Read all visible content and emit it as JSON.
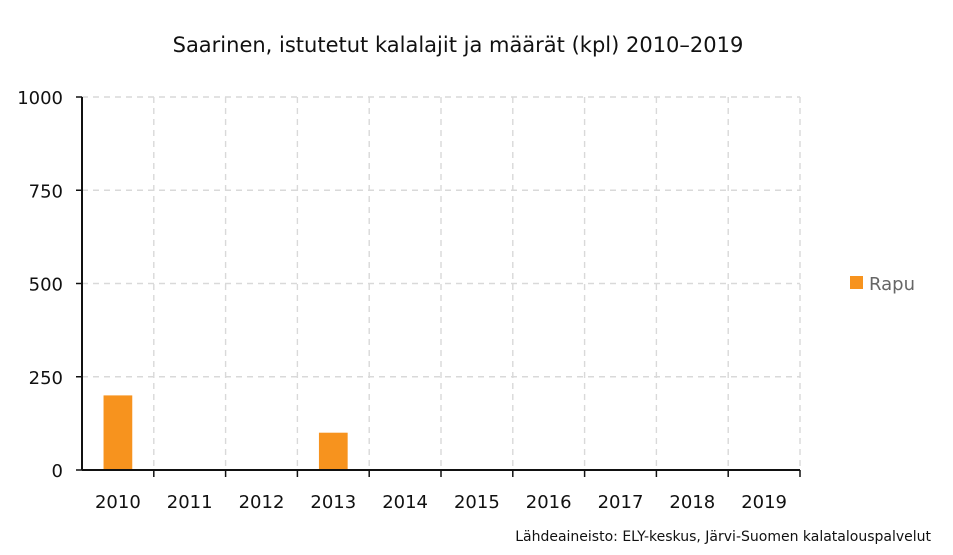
{
  "chart_data": {
    "type": "bar",
    "title": "Saarinen, istutetut kalalajit ja määrät (kpl) 2010–2019",
    "categories": [
      "2010",
      "2011",
      "2012",
      "2013",
      "2014",
      "2015",
      "2016",
      "2017",
      "2018",
      "2019"
    ],
    "series": [
      {
        "name": "Rapu",
        "color": "#f7931e",
        "values": [
          200,
          0,
          0,
          100,
          0,
          0,
          0,
          0,
          0,
          0
        ]
      }
    ],
    "ylim": [
      0,
      1000
    ],
    "yticks": [
      "0",
      "250",
      "500",
      "750",
      "1000"
    ],
    "xlabel": "",
    "ylabel": "",
    "grid": true,
    "legend": "right",
    "source": "Lähdeaineisto: ELY-keskus, Järvi-Suomen kalatalouspalvelut"
  }
}
